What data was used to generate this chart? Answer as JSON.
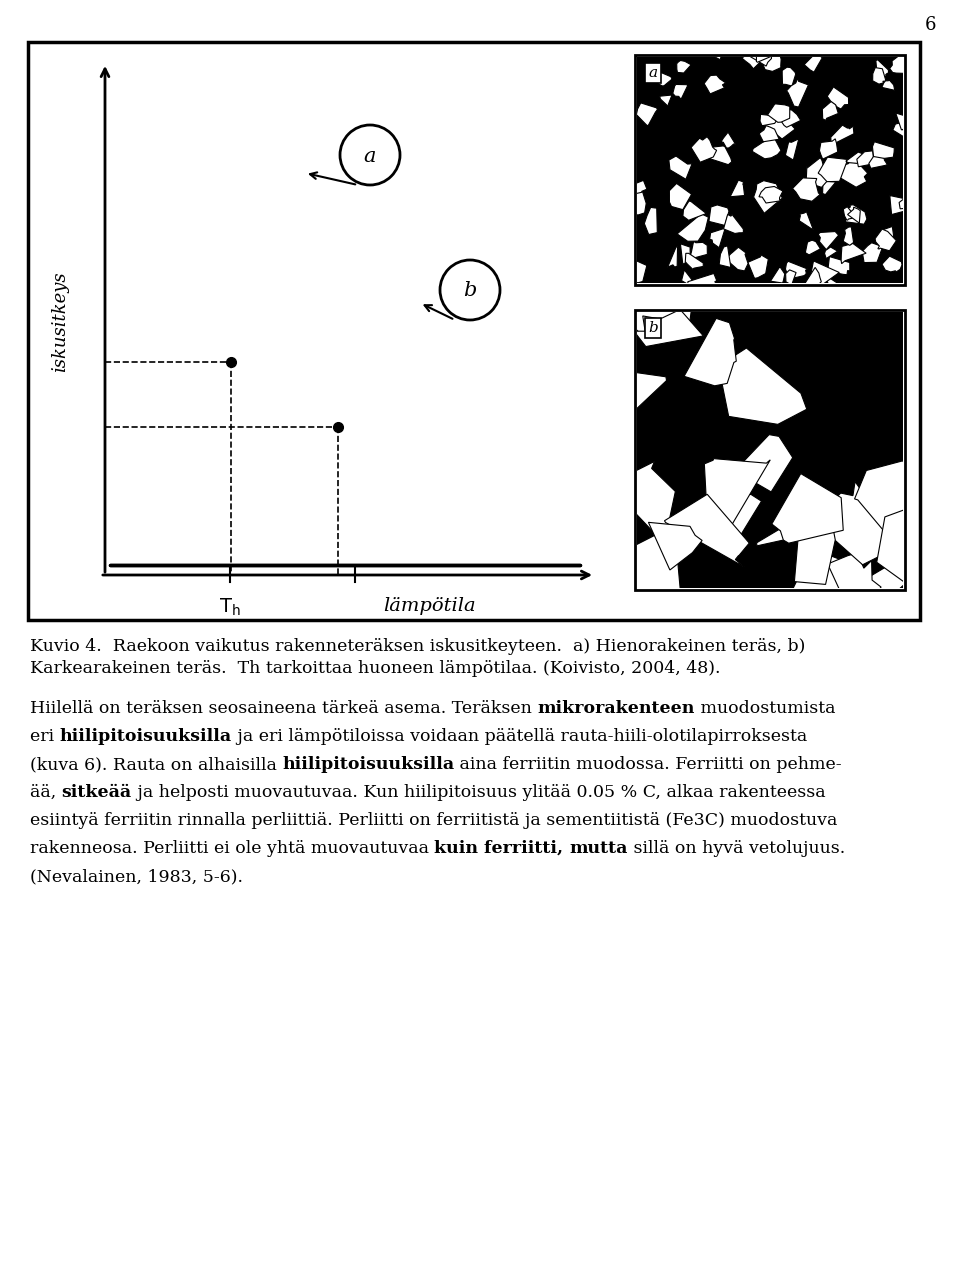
{
  "page_number": "6",
  "ylabel": "iskusitkeys",
  "xlabel_Th": "T_h",
  "xlabel_lampotila": "lämpötila",
  "caption_line1": "Kuvio 4.  Raekoon vaikutus rakenneteräksen iskusitkeyteen.  a) Hienorakeinen teräs, b)",
  "caption_line2": "Karkearakeinen teräs.  Th tarkoittaa huoneen lämpötilaa. (Koivisto, 2004, 48).",
  "para_lines": [
    [
      [
        "Hiilellä on teräksen seosaineena tärkeä asema. Teräksen ",
        false
      ],
      [
        "mikrorakenteen",
        true
      ],
      [
        " muodostumista",
        false
      ]
    ],
    [
      [
        "eri ",
        false
      ],
      [
        "hiilipitoisuuksilla",
        true
      ],
      [
        " ja eri lämpötiloissa voidaan päätellä rauta-hiili-olotilapirroksesta",
        false
      ]
    ],
    [
      [
        "(kuva 6). Rauta on alhaisilla ",
        false
      ],
      [
        "hiilipitoisuuksilla",
        true
      ],
      [
        " aina ferriitin muodossa. Ferriitti on pehme-",
        false
      ]
    ],
    [
      [
        "ää, ",
        false
      ],
      [
        "sitkeää",
        true
      ],
      [
        " ja helposti muovautuvaa. Kun hiilipitoisuus ylitää 0.05 % C, alkaa rakenteessa",
        false
      ]
    ],
    [
      [
        "esiintyä ferriitin rinnalla perliittiä. Perliitti on ferriitistä ja sementiitistä (Fe3C) muodostuva",
        false
      ]
    ],
    [
      [
        "rakenneosa. Perliitti ei ole yhtä muovautuvaa ",
        false
      ],
      [
        "kuin ferriitti,",
        true
      ],
      [
        " ",
        false
      ],
      [
        "mutta",
        true
      ],
      [
        " sillä on hyvä vetolujuus.",
        false
      ]
    ],
    [
      [
        "(Nevalainen, 1983, 5-6).",
        false
      ]
    ]
  ],
  "bg_color": "#ffffff"
}
